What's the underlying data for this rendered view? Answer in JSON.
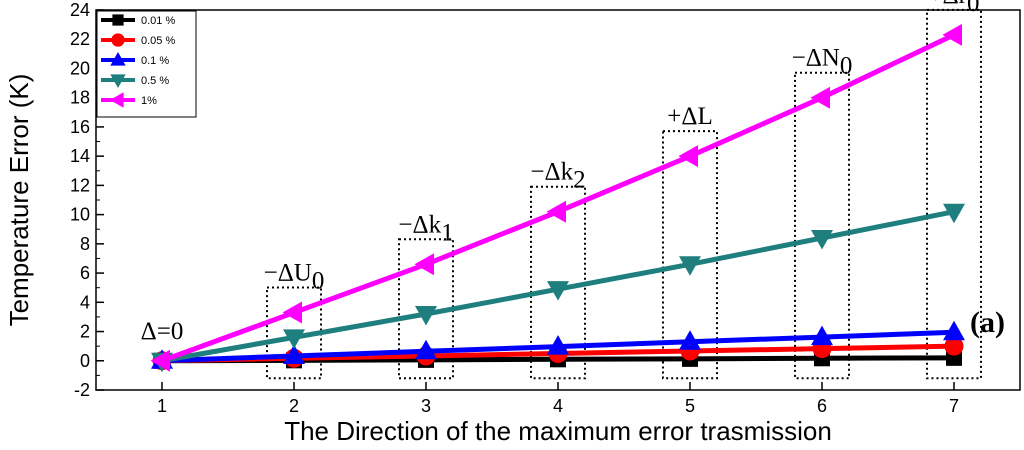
{
  "chart_data": {
    "type": "line",
    "xlabel": "The Direction of the maximum error trasmission",
    "ylabel": "Temperature Error (K)",
    "xlim": [
      0.5,
      7.5
    ],
    "ylim": [
      -2,
      24
    ],
    "x_ticks": [
      1,
      2,
      3,
      4,
      5,
      6,
      7
    ],
    "y_ticks": [
      -2,
      0,
      2,
      4,
      6,
      8,
      10,
      12,
      14,
      16,
      18,
      20,
      22,
      24
    ],
    "legend_position": "top-left",
    "x": [
      1,
      2,
      3,
      4,
      5,
      6,
      7
    ],
    "series": [
      {
        "name": "0.01 %",
        "color": "#000000",
        "marker": "square",
        "values": [
          0,
          0.03,
          0.06,
          0.1,
          0.13,
          0.17,
          0.2
        ]
      },
      {
        "name": "0.05 %",
        "color": "#ff0000",
        "marker": "circle",
        "values": [
          0,
          0.17,
          0.33,
          0.5,
          0.67,
          0.83,
          1.0
        ]
      },
      {
        "name": "0.1 %",
        "color": "#0000ff",
        "marker": "triangle-up",
        "values": [
          0,
          0.33,
          0.65,
          0.97,
          1.3,
          1.62,
          1.95
        ]
      },
      {
        "name": "0.5 %",
        "color": "#1f7f7f",
        "marker": "triangle-down",
        "values": [
          0,
          1.6,
          3.2,
          4.9,
          6.6,
          8.4,
          10.2
        ]
      },
      {
        "name": "1%",
        "color": "#ff00ff",
        "marker": "triangle-left",
        "values": [
          0,
          3.3,
          6.6,
          10.2,
          14.0,
          18.0,
          22.3
        ]
      }
    ],
    "annotations": [
      {
        "x": 1,
        "text": "Δ=0",
        "sub": ""
      },
      {
        "x": 2,
        "text": "−ΔU",
        "sub": "0"
      },
      {
        "x": 3,
        "text": "−Δk",
        "sub": "1"
      },
      {
        "x": 4,
        "text": "−Δk",
        "sub": "2"
      },
      {
        "x": 5,
        "text": "+ΔL",
        "sub": ""
      },
      {
        "x": 6,
        "text": "−ΔN",
        "sub": "0"
      },
      {
        "x": 7,
        "text": "+Δr",
        "sub": "0"
      }
    ],
    "panel_label": "(a)"
  }
}
